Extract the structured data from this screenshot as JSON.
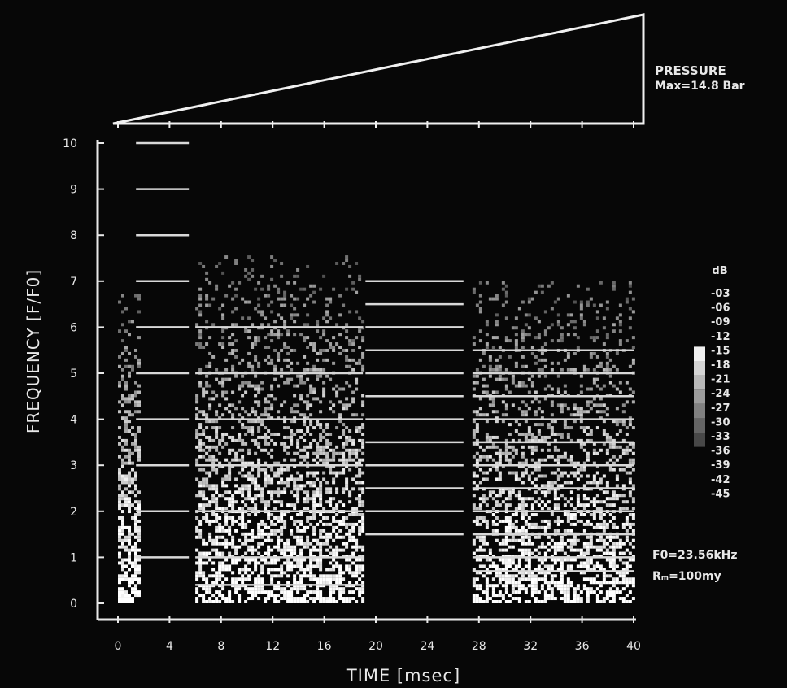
{
  "chart_data": {
    "type": "heatmap",
    "title": "",
    "xlabel": "TIME  [msec]",
    "ylabel": "FREQUENCY  [F/F0]",
    "xlim": [
      0,
      40
    ],
    "ylim": [
      0,
      10
    ],
    "x_ticks": [
      "0",
      "4",
      "8",
      "12",
      "16",
      "20",
      "24",
      "28",
      "32",
      "36",
      "40"
    ],
    "y_ticks": [
      "0",
      "1",
      "2",
      "3",
      "4",
      "5",
      "6",
      "7",
      "8",
      "9",
      "10"
    ],
    "pressure": {
      "label": "PRESSURE",
      "max_label": "Max=14.8  Bar",
      "profile": [
        {
          "t": 0,
          "p": 0
        },
        {
          "t": 40,
          "p": 14.8
        }
      ]
    },
    "colorbar": {
      "title": "dB",
      "levels": [
        "-03",
        "-06",
        "-09",
        "-12",
        "-15",
        "-18",
        "-21",
        "-24",
        "-27",
        "-30",
        "-33",
        "-36",
        "-39",
        "-42",
        "-45"
      ]
    },
    "annotations": {
      "f0": "F0=23.56kHz",
      "rmax": "Rₘ=100my"
    },
    "harmonic_lines": [
      {
        "x0": 1.4,
        "x1": 5.5,
        "f": [
          1,
          2,
          3,
          4,
          5,
          6,
          7,
          8,
          9,
          10
        ]
      },
      {
        "x0": 6.0,
        "x1": 19.0,
        "f": [
          0.4,
          1,
          2,
          3,
          4,
          5,
          6
        ]
      },
      {
        "x0": 19.2,
        "x1": 26.8,
        "f": [
          1.5,
          2,
          2.5,
          3,
          3.5,
          4,
          4.5,
          5,
          5.5,
          6,
          6.5,
          7
        ]
      },
      {
        "x0": 27.5,
        "x1": 40,
        "f": [
          0.7,
          1,
          1.5,
          2,
          2.5,
          3,
          3.5,
          4,
          4.5,
          5,
          5.5
        ]
      }
    ],
    "noise_regions": [
      {
        "x0": 0,
        "x1": 1.6,
        "fmax": 6.8,
        "intensity": 0.75
      },
      {
        "x0": 6.0,
        "x1": 19.0,
        "fmax": 7.5,
        "intensity": 0.6
      },
      {
        "x0": 27.5,
        "x1": 40,
        "fmax": 7.0,
        "intensity": 0.55
      }
    ]
  }
}
